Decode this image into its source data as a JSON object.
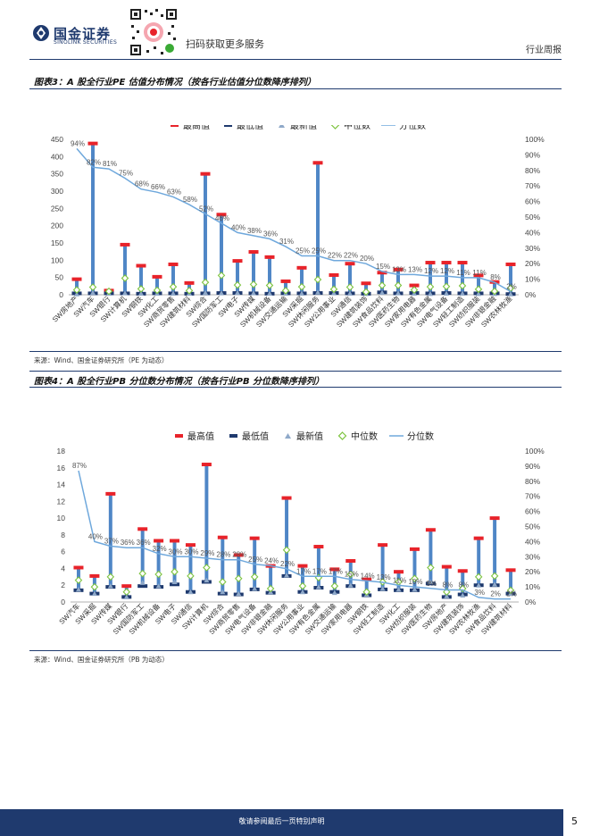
{
  "header": {
    "logo_name": "国金证券",
    "logo_en": "SINOLINK SECURITIES",
    "qr_text": "扫码获取更多服务",
    "section": "行业周报"
  },
  "figure3": {
    "caption": "图表3：A 股全行业PE 估值分布情况（按各行业估值分位数降序排列）",
    "source": "来源：Wind、国金证券研究所（PE 为动态）"
  },
  "figure4": {
    "caption": "图表4：A 股全行业PB 分位数分布情况（按各行业PB 分位数降序排列）",
    "source": "来源：Wind、国金证券研究所（PB 为动态）"
  },
  "footer": {
    "disclaimer": "敬请参阅最后一页特别声明",
    "page": "5"
  },
  "colors": {
    "high": "#e8232a",
    "low": "#1f3a6e",
    "latest": "#8fa9c9",
    "median": "#7ec440",
    "pct": "#6fa8dc",
    "stem": "#4f86c6",
    "brand": "#1f3a6e"
  },
  "chart_data": [
    {
      "type": "bar",
      "title": "A股全行业PE估值分布情况",
      "legend": [
        "最高值",
        "最低值",
        "最新值",
        "中位数",
        "分位数"
      ],
      "categories": [
        "SW房地产",
        "SW汽车",
        "SW银行",
        "SW计算机",
        "SW钢铁",
        "SW化工",
        "SW商贸零售",
        "SW建筑材料",
        "SW综合",
        "SW国防军工",
        "SW电子",
        "SW传媒",
        "SW机械设备",
        "SW交通运输",
        "SW采掘",
        "SW休闲服务",
        "SW公用事业",
        "SW通信",
        "SW建筑装饰",
        "SW食品饮料",
        "SW医药生物",
        "SW家用电器",
        "SW有色金属",
        "SW电气设备",
        "SW轻工制造",
        "SW纺织服装",
        "SW非银金融",
        "SW农林牧渔"
      ],
      "high": [
        45,
        438,
        12,
        145,
        84,
        52,
        88,
        34,
        350,
        232,
        98,
        124,
        109,
        39,
        78,
        382,
        57,
        90,
        33,
        64,
        73,
        27,
        93,
        93,
        93,
        56,
        37,
        88
      ],
      "low": [
        4,
        4,
        4,
        4,
        3,
        4,
        4,
        3,
        4,
        5,
        5,
        4,
        3,
        4,
        4,
        5,
        5,
        4,
        3,
        7,
        4,
        5,
        4,
        5,
        4,
        4,
        4,
        2
      ],
      "latest": [
        2,
        6,
        4,
        5,
        4,
        4,
        4,
        4,
        6,
        5,
        6,
        5,
        4,
        4,
        4,
        7,
        5,
        4,
        3,
        6,
        5,
        4,
        3,
        4,
        4,
        3,
        3,
        2
      ],
      "median": [
        14,
        22,
        10,
        48,
        17,
        13,
        23,
        12,
        36,
        56,
        28,
        30,
        27,
        12,
        23,
        44,
        16,
        22,
        8,
        27,
        27,
        14,
        23,
        24,
        26,
        16,
        10,
        19
      ],
      "percentile": [
        94,
        82,
        81,
        75,
        68,
        66,
        63,
        58,
        52,
        46,
        40,
        38,
        36,
        31,
        25,
        25,
        22,
        22,
        20,
        15,
        13,
        13,
        12,
        12,
        11,
        11,
        8,
        2
      ],
      "percentile_labels": [
        "94%",
        "82%",
        "81%",
        "75%",
        "68%",
        "66%",
        "63%",
        "58%",
        "52%",
        "46%",
        "40%",
        "38%",
        "36%",
        "31%",
        "25%",
        "25%",
        "22%",
        "22%",
        "20%",
        "15%",
        "13%",
        "13%",
        "12%",
        "12%",
        "11%",
        "11%",
        "8%",
        "2%"
      ],
      "ylim": [
        0,
        450
      ],
      "yticks": [
        "0",
        "50",
        "100",
        "150",
        "200",
        "250",
        "300",
        "350",
        "400",
        "450"
      ],
      "y2lim": [
        0,
        100
      ],
      "y2ticks": [
        "0%",
        "10%",
        "20%",
        "30%",
        "40%",
        "50%",
        "60%",
        "70%",
        "80%",
        "90%",
        "100%"
      ]
    },
    {
      "type": "bar",
      "title": "A股全行业PB分位数分布情况",
      "legend": [
        "最高值",
        "最低值",
        "最新值",
        "中位数",
        "分位数"
      ],
      "categories": [
        "SW汽车",
        "SW采掘",
        "SW传媒",
        "SW银行",
        "SW国防军工",
        "SW机械设备",
        "SW电子",
        "SW通信",
        "SW计算机",
        "SW综合",
        "SW商贸零售",
        "SW电气设备",
        "SW非银金融",
        "SW休闲服务",
        "SW公用事业",
        "SW有色金属",
        "SW交通运输",
        "SW家用电器",
        "SW钢铁",
        "SW轻工制造",
        "SW化工",
        "SW纺织服装",
        "SW医药生物",
        "SW房地产",
        "SW建筑装饰",
        "SW农林牧渔",
        "SW食品饮料",
        "SW建筑材料"
      ],
      "high": [
        4.1,
        3.1,
        12.9,
        1.9,
        8.7,
        7.3,
        7.3,
        6.8,
        16.4,
        7.7,
        5.6,
        7.6,
        4.3,
        12.4,
        4.3,
        6.6,
        3.9,
        4.9,
        2.7,
        6.8,
        3.6,
        6.3,
        8.6,
        4.2,
        3.7,
        7.6,
        10.0,
        3.8
      ],
      "low": [
        1.4,
        1.0,
        1.8,
        0.6,
        1.9,
        1.8,
        2.1,
        1.2,
        2.4,
        1.0,
        0.9,
        1.5,
        1.1,
        3.1,
        1.2,
        1.7,
        1.2,
        1.9,
        0.8,
        1.5,
        1.4,
        1.4,
        2.2,
        0.6,
        0.9,
        2.0,
        2.0,
        1.0
      ],
      "latest": [
        1.5,
        1.0,
        1.9,
        0.6,
        2.3,
        1.9,
        2.4,
        1.2,
        2.6,
        1.2,
        1.0,
        1.6,
        1.2,
        3.2,
        1.2,
        1.8,
        1.1,
        2.0,
        0.9,
        1.6,
        1.5,
        1.5,
        2.4,
        0.7,
        0.8,
        2.0,
        2.1,
        1.0
      ],
      "median": [
        2.6,
        1.8,
        3.0,
        1.2,
        3.4,
        3.3,
        3.6,
        3.1,
        4.1,
        2.4,
        2.8,
        3.0,
        1.6,
        6.2,
        1.9,
        2.9,
        1.9,
        3.3,
        1.2,
        2.4,
        2.4,
        2.8,
        4.1,
        1.2,
        1.6,
        3.0,
        3.1,
        1.4
      ],
      "percentile": [
        87,
        40,
        37,
        36,
        36,
        32,
        30,
        30,
        29,
        28,
        28,
        25,
        24,
        22,
        17,
        17,
        17,
        15,
        14,
        13,
        11,
        10,
        9,
        8,
        8,
        3,
        2,
        2
      ],
      "percentile_labels": [
        "87%",
        "40%",
        "37%",
        "36%",
        "36%",
        "32%",
        "30%",
        "30%",
        "29%",
        "28%",
        "28%",
        "25%",
        "24%",
        "22%",
        "17%",
        "17%",
        "17%",
        "15%",
        "14%",
        "13%",
        "11%",
        "10%",
        "9%",
        "8%",
        "8%",
        "3%",
        "2%",
        "2%"
      ],
      "ylim": [
        0,
        18
      ],
      "yticks": [
        "0",
        "2",
        "4",
        "6",
        "8",
        "10",
        "12",
        "14",
        "16",
        "18"
      ],
      "y2lim": [
        0,
        100
      ],
      "y2ticks": [
        "0%",
        "10%",
        "20%",
        "30%",
        "40%",
        "50%",
        "60%",
        "70%",
        "80%",
        "90%",
        "100%"
      ]
    }
  ]
}
